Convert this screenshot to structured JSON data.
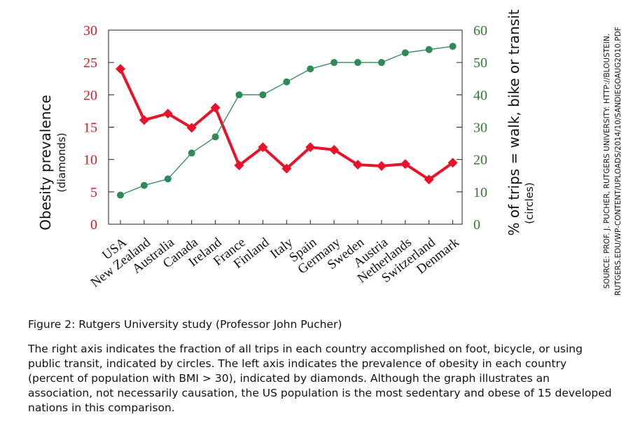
{
  "chart_data": {
    "type": "line",
    "categories": [
      "USA",
      "New Zealand",
      "Australia",
      "Canada",
      "Ireland",
      "France",
      "Finland",
      "Italy",
      "Spain",
      "Germany",
      "Sweden",
      "Austria",
      "Netherlands",
      "Switzerland",
      "Denmark"
    ],
    "series": [
      {
        "name": "Obesity prevalence (diamonds)",
        "axis": "left",
        "marker": "diamond",
        "color": "#e8132a",
        "values": [
          24.0,
          16.1,
          17.1,
          14.9,
          18.0,
          9.1,
          11.9,
          8.6,
          11.9,
          11.5,
          9.2,
          9.0,
          9.3,
          6.9,
          9.5
        ]
      },
      {
        "name": "% of trips = walk, bike or transit (circles)",
        "axis": "right",
        "marker": "circle",
        "color": "#2e8b57",
        "values": [
          9,
          12,
          14,
          22,
          27,
          40,
          40,
          44,
          48,
          50,
          50,
          50,
          53,
          54,
          55
        ]
      }
    ],
    "left_axis": {
      "label": "Obesity prevalence",
      "sublabel": "(diamonds)",
      "ylim": [
        0,
        30
      ],
      "ticks": [
        "0",
        "5",
        "10",
        "15",
        "20",
        "25",
        "30"
      ],
      "color": "#d0202a"
    },
    "right_axis": {
      "label": "% of trips = walk, bike or transit",
      "sublabel": "(circles)",
      "ylim": [
        0,
        60
      ],
      "ticks": [
        "0",
        "10",
        "20",
        "30",
        "40",
        "50",
        "60"
      ],
      "color": "#2e7d32"
    },
    "grid": false
  },
  "source": {
    "line1": "SOURCE: PROF. J. PUCHER, RUTGERS UNIVERSITY: HTTP://BLOUSTEIN.",
    "line2": "RUTGERS.EDU/WP-CONTENT/UPLOADS/2014/10/SANDIEGOAUG2010.PDF"
  },
  "caption": "Figure 2: Rutgers University study (Professor John Pucher)",
  "description": "The right axis indicates the fraction of all trips in each country accomplished on foot, bicycle, or using public transit, indicated by circles. The left axis indicates the prevalence of obesity in each country (percent of population with BMI > 30), indicated by diamonds. Although the graph illustrates an association, not necessarily causation, the US population is the most sedentary and obese of 15 developed nations in this comparison."
}
